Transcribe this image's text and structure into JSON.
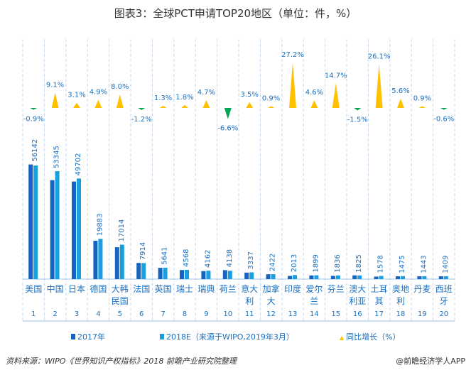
{
  "chart_data": {
    "type": "bar",
    "title": "图表3：全球PCT申请TOP20地区（单位：件，%）",
    "categories": [
      "美国",
      "中国",
      "日本",
      "德国",
      "大韩民国",
      "法国",
      "英国",
      "瑞士",
      "瑞典",
      "荷兰",
      "意大利",
      "加拿大",
      "印度",
      "爱尔兰",
      "芬兰",
      "澳大利亚",
      "土耳其",
      "奥地利",
      "丹麦",
      "西班牙"
    ],
    "category_lines": [
      [
        "美国"
      ],
      [
        "中国"
      ],
      [
        "日本"
      ],
      [
        "德国"
      ],
      [
        "大韩",
        "民国"
      ],
      [
        "法国"
      ],
      [
        "英国"
      ],
      [
        "瑞士"
      ],
      [
        "瑞典"
      ],
      [
        "荷兰"
      ],
      [
        "意大",
        "利"
      ],
      [
        "加拿",
        "大"
      ],
      [
        "印度"
      ],
      [
        "爱尔",
        "兰"
      ],
      [
        "芬兰"
      ],
      [
        "澳大",
        "利亚"
      ],
      [
        "土耳",
        "其"
      ],
      [
        "奥地",
        "利"
      ],
      [
        "丹麦"
      ],
      [
        "西班",
        "牙"
      ]
    ],
    "ranks": [
      "1",
      "2",
      "3",
      "4",
      "5",
      "6",
      "7",
      "8",
      "9",
      "10",
      "11",
      "12",
      "13",
      "14",
      "15",
      "16",
      "17",
      "18",
      "19",
      "20"
    ],
    "series": [
      {
        "name": "2017年",
        "color": "#1565c0",
        "values": [
          56651,
          48896,
          48208,
          18954,
          15754,
          8010,
          5569,
          4487,
          3975,
          4430,
          3224,
          2400,
          1583,
          1815,
          1601,
          1853,
          1251,
          1397,
          1430,
          1417
        ]
      },
      {
        "name": "2018E（来源于WIPO,2019年3月）",
        "color": "#1a9ee0",
        "values": [
          56142,
          53345,
          49702,
          19883,
          17014,
          7914,
          5641,
          4568,
          4162,
          4138,
          3337,
          2422,
          2013,
          1899,
          1836,
          1825,
          1578,
          1475,
          1443,
          1409
        ]
      },
      {
        "name": "同比增长（%）",
        "type": "triangle",
        "color_up": "#ffc000",
        "color_down": "#00a651",
        "values": [
          -0.9,
          9.1,
          3.1,
          4.9,
          8.0,
          -1.2,
          1.3,
          1.8,
          4.7,
          -6.6,
          3.5,
          0.9,
          27.2,
          4.6,
          14.7,
          -1.5,
          26.1,
          5.6,
          0.9,
          -0.6
        ]
      }
    ],
    "value_labels": [
      "56142",
      "53345",
      "49702",
      "19883",
      "17014",
      "7914",
      "5641",
      "4568",
      "4162",
      "4138",
      "3337",
      "2422",
      "2013",
      "1899",
      "1836",
      "1825",
      "1578",
      "1475",
      "1443",
      "1409"
    ],
    "growth_labels": [
      "-0.9%",
      "9.1%",
      "3.1%",
      "4.9%",
      "8.0%",
      "-1.2%",
      "1.3%",
      "1.8%",
      "4.7%",
      "-6.6%",
      "3.5%",
      "0.9%",
      "27.2%",
      "4.6%",
      "14.7%",
      "-1.5%",
      "26.1%",
      "5.6%",
      "0.9%",
      "-0.6%"
    ],
    "legend_position": "bottom",
    "grid": "vertical dashed"
  },
  "legend": {
    "s1": "2017年",
    "s2": "2018E（来源于WIPO,2019年3月）",
    "s3": "同比增长（%）"
  },
  "footer": {
    "source": "资料来源：WIPO《世界知识产权指标》2018 前瞻产业研究院整理",
    "credit": "@前瞻经济学人APP"
  },
  "colors": {
    "label": "#1a6fc0",
    "grid": "#c5d9f1"
  }
}
